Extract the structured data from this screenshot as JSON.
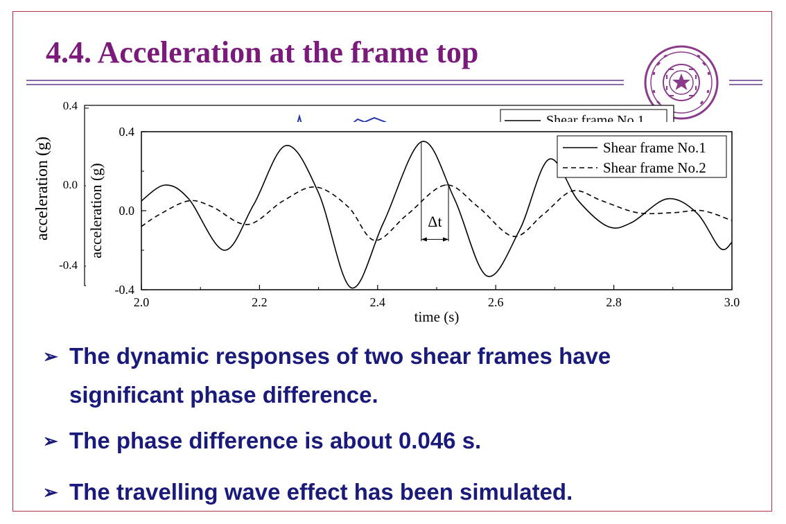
{
  "slide": {
    "title": "4.4. Acceleration at the frame top",
    "bullet_symbol": "➢",
    "bullets": [
      [
        "The dynamic responses of two shear frames have",
        "significant phase difference."
      ],
      [
        "The phase difference is about 0.046 s."
      ],
      [
        "The travelling wave effect has been simulated."
      ]
    ],
    "colors": {
      "title": "#7a1a7a",
      "bullet_text": "#1a1a7a",
      "border": "#b03040",
      "rule": "#8a6aa8",
      "logo": "#8a3a8a"
    },
    "logo_icon": "tsinghua-university-seal-icon"
  },
  "back_chart": {
    "ylabel": "acceleration (g)",
    "yticks": [
      "0.4",
      "0.0",
      "-0.4"
    ],
    "legend_partial": "Shear frame No.1"
  },
  "chart_data": {
    "type": "line",
    "xlabel": "time (s)",
    "ylabel": "acceleration (g)",
    "xlim": [
      2.0,
      3.0
    ],
    "ylim": [
      -0.4,
      0.4
    ],
    "xticks": [
      "2.0",
      "2.2",
      "2.4",
      "2.6",
      "2.8",
      "3.0"
    ],
    "yticks": [
      "0.4",
      "0.0",
      "-0.4"
    ],
    "legend_position": "top-right",
    "annotation": {
      "label": "Δt",
      "x_start": 2.474,
      "x_end": 2.52
    },
    "series": [
      {
        "name": "Shear frame No.1",
        "style": "solid",
        "points": [
          [
            2.0,
            0.05
          ],
          [
            2.04,
            0.13
          ],
          [
            2.08,
            0.06
          ],
          [
            2.14,
            -0.2
          ],
          [
            2.19,
            0.03
          ],
          [
            2.245,
            0.33
          ],
          [
            2.3,
            0.09
          ],
          [
            2.355,
            -0.39
          ],
          [
            2.41,
            -0.06
          ],
          [
            2.475,
            0.35
          ],
          [
            2.53,
            0.06
          ],
          [
            2.585,
            -0.33
          ],
          [
            2.64,
            -0.1
          ],
          [
            2.69,
            0.26
          ],
          [
            2.74,
            0.05
          ],
          [
            2.79,
            -0.08
          ],
          [
            2.83,
            -0.06
          ],
          [
            2.89,
            0.06
          ],
          [
            2.94,
            -0.01
          ],
          [
            2.98,
            -0.19
          ],
          [
            3.0,
            -0.16
          ]
        ]
      },
      {
        "name": "Shear frame No.2",
        "style": "dashed",
        "points": [
          [
            2.0,
            -0.08
          ],
          [
            2.03,
            -0.02
          ],
          [
            2.08,
            0.05
          ],
          [
            2.12,
            0.02
          ],
          [
            2.18,
            -0.07
          ],
          [
            2.24,
            0.05
          ],
          [
            2.295,
            0.12
          ],
          [
            2.35,
            0.02
          ],
          [
            2.395,
            -0.15
          ],
          [
            2.45,
            -0.02
          ],
          [
            2.515,
            0.13
          ],
          [
            2.57,
            0.02
          ],
          [
            2.63,
            -0.13
          ],
          [
            2.68,
            -0.02
          ],
          [
            2.73,
            0.1
          ],
          [
            2.78,
            0.05
          ],
          [
            2.84,
            -0.01
          ],
          [
            2.9,
            -0.01
          ],
          [
            2.95,
            0.0
          ],
          [
            3.0,
            -0.05
          ]
        ]
      }
    ]
  }
}
